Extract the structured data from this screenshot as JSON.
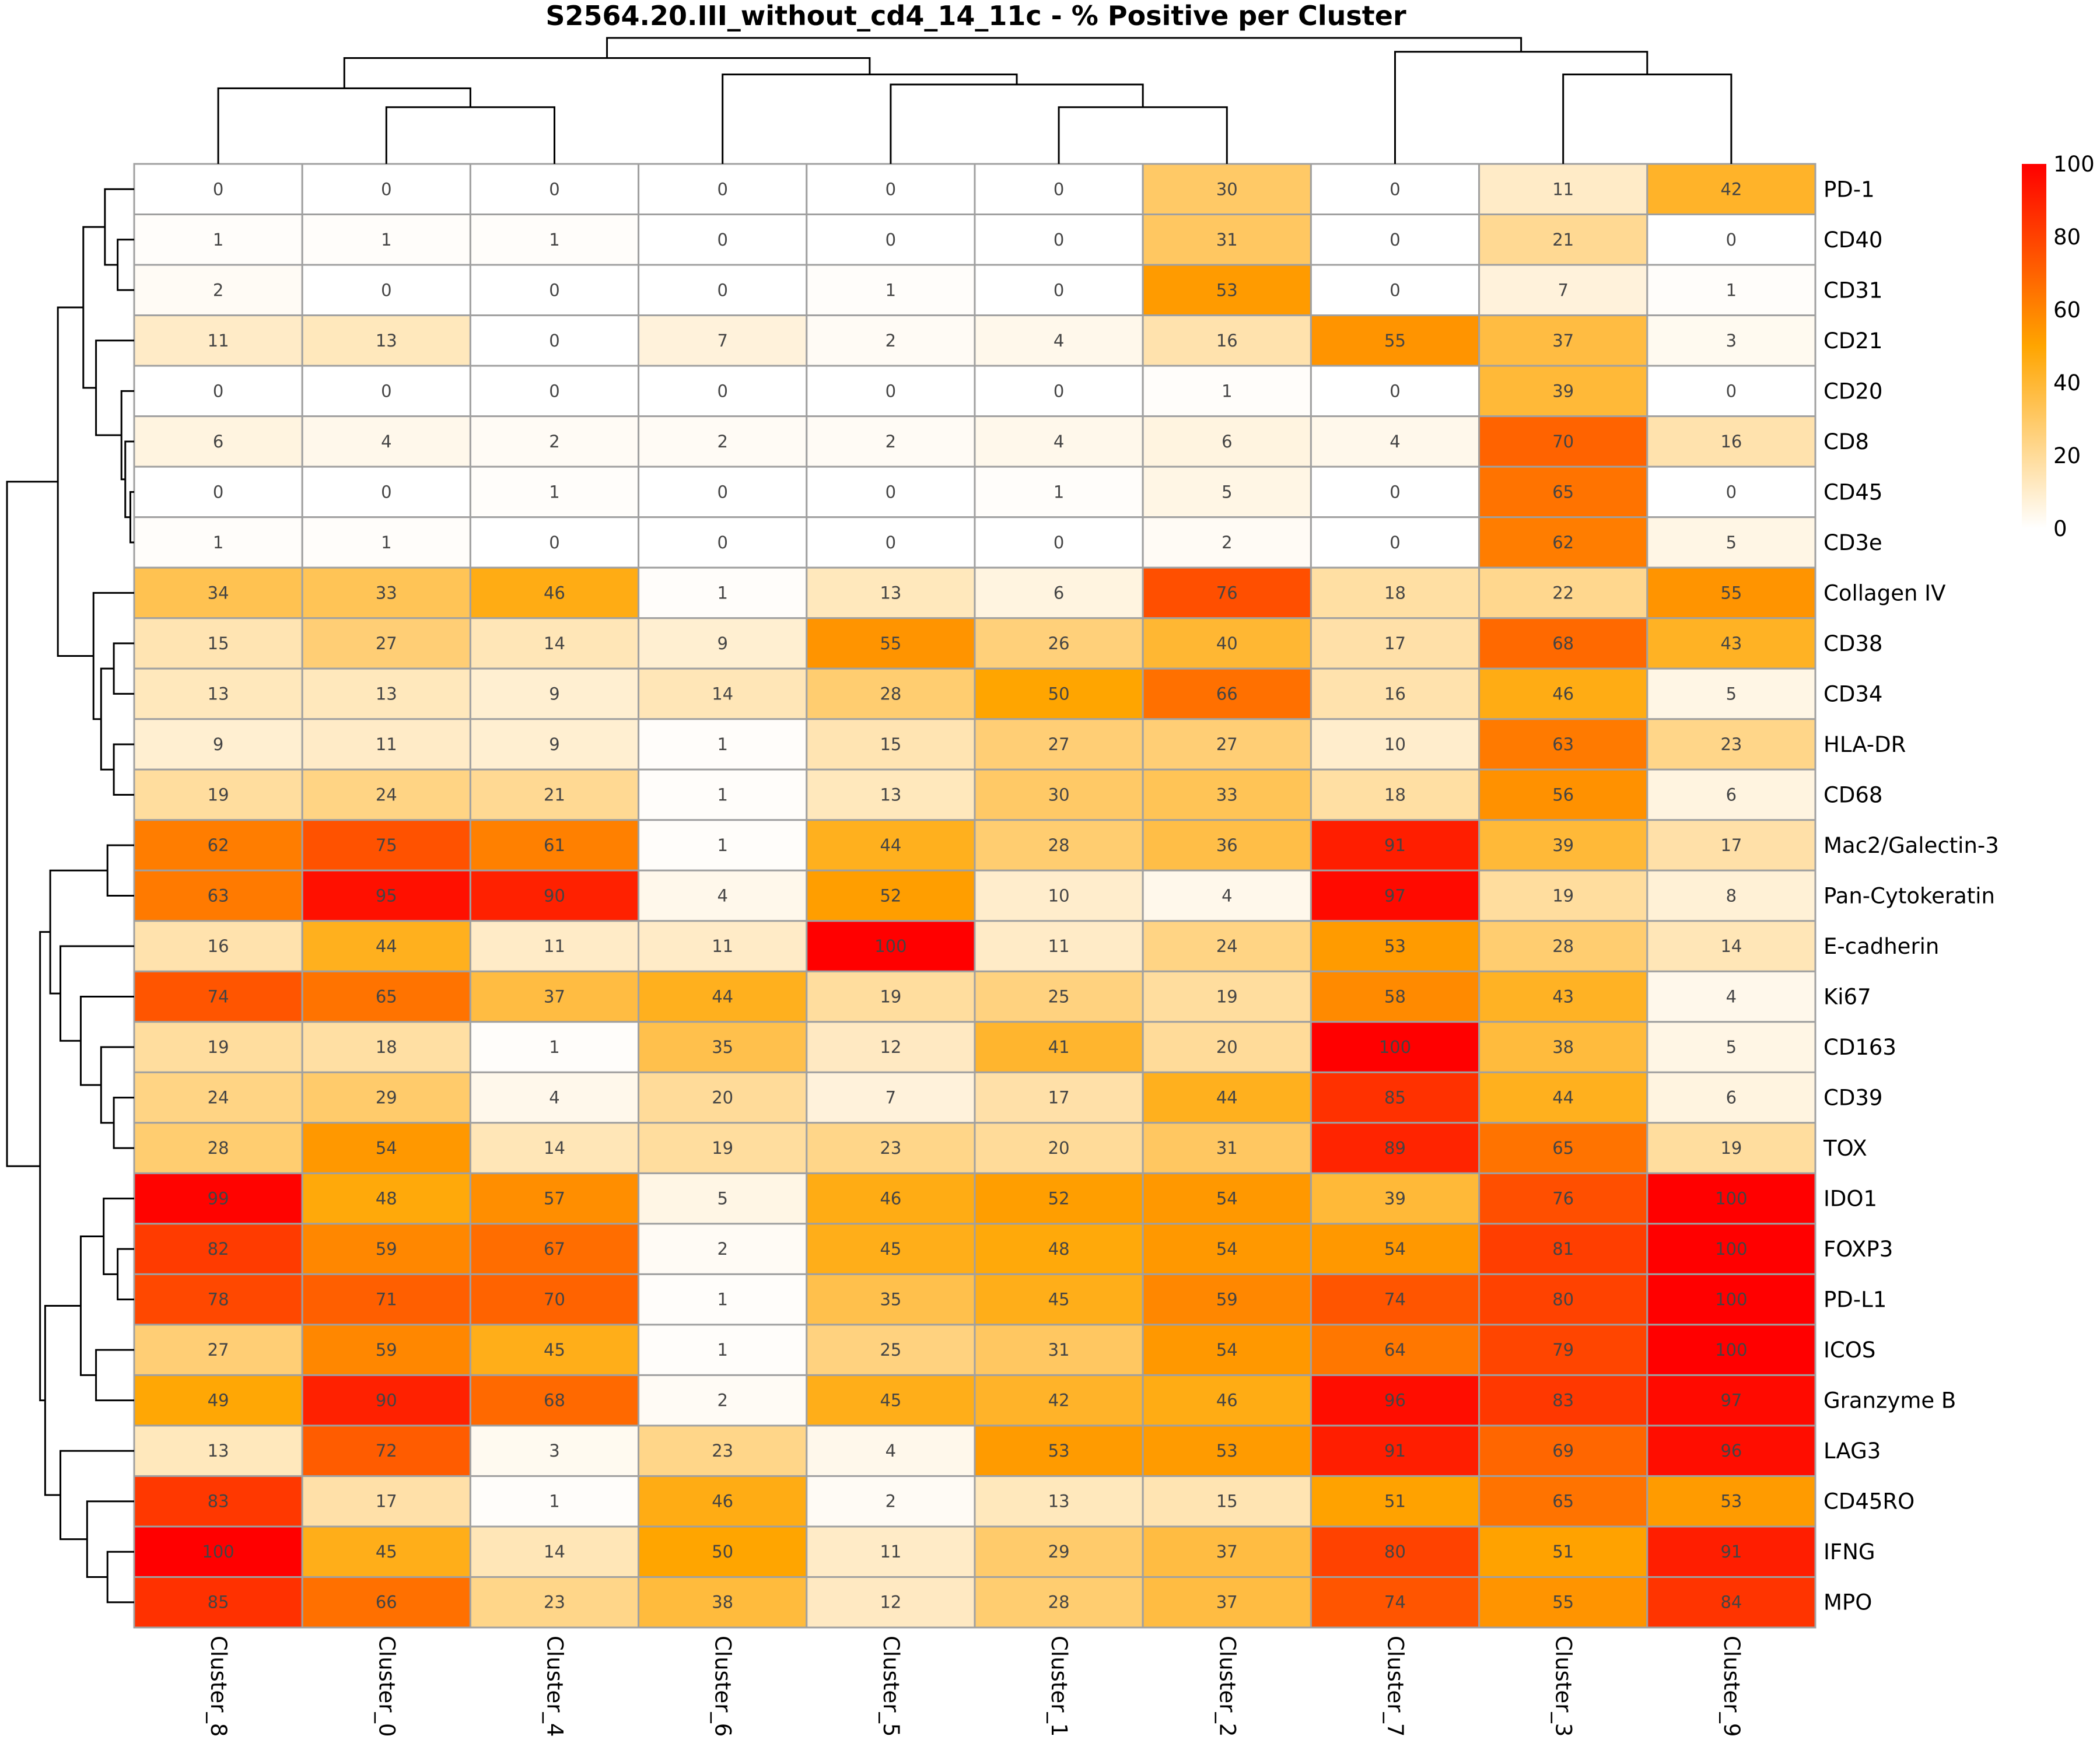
{
  "chart_data": {
    "type": "heatmap",
    "title": "S2564.20.III_without_cd4_14_11c - % Positive per Cluster",
    "columns": [
      "Cluster_8",
      "Cluster_0",
      "Cluster_4",
      "Cluster_6",
      "Cluster_5",
      "Cluster_1",
      "Cluster_2",
      "Cluster_7",
      "Cluster_3",
      "Cluster_9"
    ],
    "rows": [
      "PD-1",
      "CD40",
      "CD31",
      "CD21",
      "CD20",
      "CD8",
      "CD45",
      "CD3e",
      "Collagen IV",
      "CD38",
      "CD34",
      "HLA-DR",
      "CD68",
      "Mac2/Galectin-3",
      "Pan-Cytokeratin",
      "E-cadherin",
      "Ki67",
      "CD163",
      "CD39",
      "TOX",
      "IDO1",
      "FOXP3",
      "PD-L1",
      "ICOS",
      "Granzyme B",
      "LAG3",
      "CD45RO",
      "IFNG",
      "MPO"
    ],
    "values": [
      [
        0,
        0,
        0,
        0,
        0,
        0,
        30,
        0,
        11,
        42
      ],
      [
        1,
        1,
        1,
        0,
        0,
        0,
        31,
        0,
        21,
        0
      ],
      [
        2,
        0,
        0,
        0,
        1,
        0,
        53,
        0,
        7,
        1
      ],
      [
        11,
        13,
        0,
        7,
        2,
        4,
        16,
        55,
        37,
        3
      ],
      [
        0,
        0,
        0,
        0,
        0,
        0,
        1,
        0,
        39,
        0
      ],
      [
        6,
        4,
        2,
        2,
        2,
        4,
        6,
        4,
        70,
        16
      ],
      [
        0,
        0,
        1,
        0,
        0,
        1,
        5,
        0,
        65,
        0
      ],
      [
        1,
        1,
        0,
        0,
        0,
        0,
        2,
        0,
        62,
        5
      ],
      [
        34,
        33,
        46,
        1,
        13,
        6,
        76,
        18,
        22,
        55
      ],
      [
        15,
        27,
        14,
        9,
        55,
        26,
        40,
        17,
        68,
        43
      ],
      [
        13,
        13,
        9,
        14,
        28,
        50,
        66,
        16,
        46,
        5
      ],
      [
        9,
        11,
        9,
        1,
        15,
        27,
        27,
        10,
        63,
        23
      ],
      [
        19,
        24,
        21,
        1,
        13,
        30,
        33,
        18,
        56,
        6
      ],
      [
        62,
        75,
        61,
        1,
        44,
        28,
        36,
        91,
        39,
        17
      ],
      [
        63,
        95,
        90,
        4,
        52,
        10,
        4,
        97,
        19,
        8
      ],
      [
        16,
        44,
        11,
        11,
        100,
        11,
        24,
        53,
        28,
        14
      ],
      [
        74,
        65,
        37,
        44,
        19,
        25,
        19,
        58,
        43,
        4
      ],
      [
        19,
        18,
        1,
        35,
        12,
        41,
        20,
        100,
        38,
        5
      ],
      [
        24,
        29,
        4,
        20,
        7,
        17,
        44,
        85,
        44,
        6
      ],
      [
        28,
        54,
        14,
        19,
        23,
        20,
        31,
        89,
        65,
        19
      ],
      [
        99,
        48,
        57,
        5,
        46,
        52,
        54,
        39,
        76,
        100
      ],
      [
        82,
        59,
        67,
        2,
        45,
        48,
        54,
        54,
        81,
        100
      ],
      [
        78,
        71,
        70,
        1,
        35,
        45,
        59,
        74,
        80,
        100
      ],
      [
        27,
        59,
        45,
        1,
        25,
        31,
        54,
        64,
        79,
        100
      ],
      [
        49,
        90,
        68,
        2,
        45,
        42,
        46,
        96,
        83,
        97
      ],
      [
        13,
        72,
        3,
        23,
        4,
        53,
        53,
        91,
        69,
        96
      ],
      [
        83,
        17,
        1,
        46,
        2,
        13,
        15,
        51,
        65,
        53
      ],
      [
        100,
        45,
        14,
        50,
        11,
        29,
        37,
        80,
        51,
        91
      ],
      [
        85,
        66,
        23,
        38,
        12,
        28,
        37,
        74,
        55,
        84
      ]
    ],
    "color_scale": {
      "range": [
        0,
        100
      ],
      "ticks": [
        0,
        20,
        40,
        60,
        80,
        100
      ],
      "colors": [
        "#FFFFFF",
        "#FFD27F",
        "#FFA500",
        "#FF5200",
        "#FF0000"
      ]
    },
    "row_dendrogram": true,
    "column_dendrogram": true
  }
}
